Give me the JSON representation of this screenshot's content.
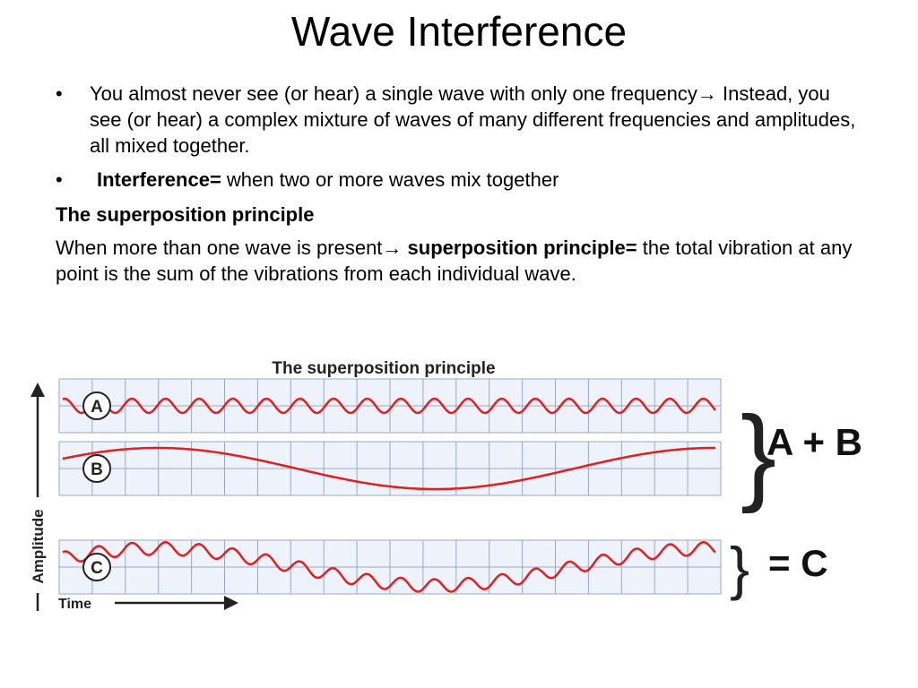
{
  "title": "Wave Interference",
  "bullets": [
    {
      "text": "You almost never see (or hear) a single wave with only one frequency→ Instead, you see (or hear) a complex mixture of waves of many different frequencies and amplitudes, all mixed together."
    },
    {
      "bold": "Interference=",
      "text": " when two or more waves mix together"
    }
  ],
  "heading": "The superposition principle",
  "paragraph": {
    "before": "When more than one wave is present→ ",
    "bold": "superposition principle=",
    "after": " the total vibration at any point is the sum of the vibrations from each individual wave."
  },
  "figure": {
    "title": "The superposition principle",
    "labels": [
      "A",
      "B",
      "C"
    ],
    "sum_label": "A + B",
    "result_label": "= C",
    "y_axis": "Amplitude",
    "x_axis": "Time"
  }
}
